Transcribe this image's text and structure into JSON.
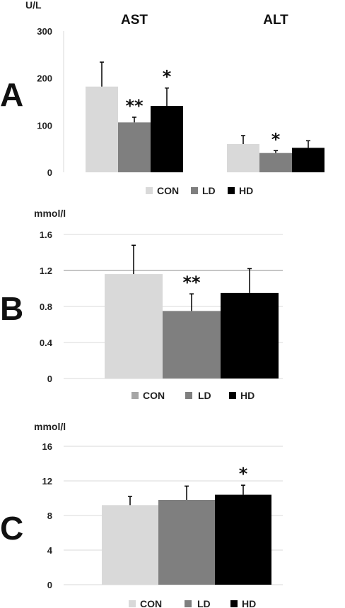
{
  "colors": {
    "CON": "#d9d9d9",
    "LD": "#7f7f7f",
    "HD": "#000000",
    "CON_legend_panel_b": "#a6a6a6"
  },
  "legend": [
    "CON",
    "LD",
    "HD"
  ],
  "chart_data": [
    {
      "panel": "A",
      "type": "bar",
      "ylabel": "U/L",
      "ylim": [
        0,
        300
      ],
      "yticks": [
        "0",
        "100",
        "200",
        "300"
      ],
      "grid": false,
      "categories": [
        "AST",
        "ALT"
      ],
      "series": [
        {
          "name": "CON",
          "values": [
            182,
            60
          ],
          "errors": [
            52,
            18
          ]
        },
        {
          "name": "LD",
          "values": [
            106,
            41
          ],
          "errors": [
            11,
            5
          ]
        },
        {
          "name": "HD",
          "values": [
            141,
            52
          ],
          "errors": [
            38,
            15
          ]
        }
      ],
      "annotations": [
        {
          "category": "AST",
          "series": "LD",
          "text": "**"
        },
        {
          "category": "AST",
          "series": "HD",
          "text": "*"
        },
        {
          "category": "ALT",
          "series": "LD",
          "text": "*"
        }
      ]
    },
    {
      "panel": "B",
      "type": "bar",
      "ylabel": "mmol/l",
      "ylim": [
        0,
        1.6
      ],
      "yticks": [
        "0",
        "0.4",
        "0.8",
        "1.2",
        "1.6"
      ],
      "grid": true,
      "categories": [
        ""
      ],
      "series": [
        {
          "name": "CON",
          "values": [
            1.16
          ],
          "errors": [
            0.32
          ]
        },
        {
          "name": "LD",
          "values": [
            0.75
          ],
          "errors": [
            0.19
          ]
        },
        {
          "name": "HD",
          "values": [
            0.95
          ],
          "errors": [
            0.27
          ]
        }
      ],
      "annotations": [
        {
          "category": "",
          "series": "LD",
          "text": "**"
        }
      ]
    },
    {
      "panel": "C",
      "type": "bar",
      "ylabel": "mmol/l",
      "ylim": [
        0,
        16
      ],
      "yticks": [
        "0",
        "4",
        "8",
        "12",
        "16"
      ],
      "grid": true,
      "categories": [
        ""
      ],
      "series": [
        {
          "name": "CON",
          "values": [
            9.2
          ],
          "errors": [
            1.0
          ]
        },
        {
          "name": "LD",
          "values": [
            9.8
          ],
          "errors": [
            1.6
          ]
        },
        {
          "name": "HD",
          "values": [
            10.4
          ],
          "errors": [
            1.1
          ]
        }
      ],
      "annotations": [
        {
          "category": "",
          "series": "HD",
          "text": "*"
        }
      ]
    }
  ]
}
